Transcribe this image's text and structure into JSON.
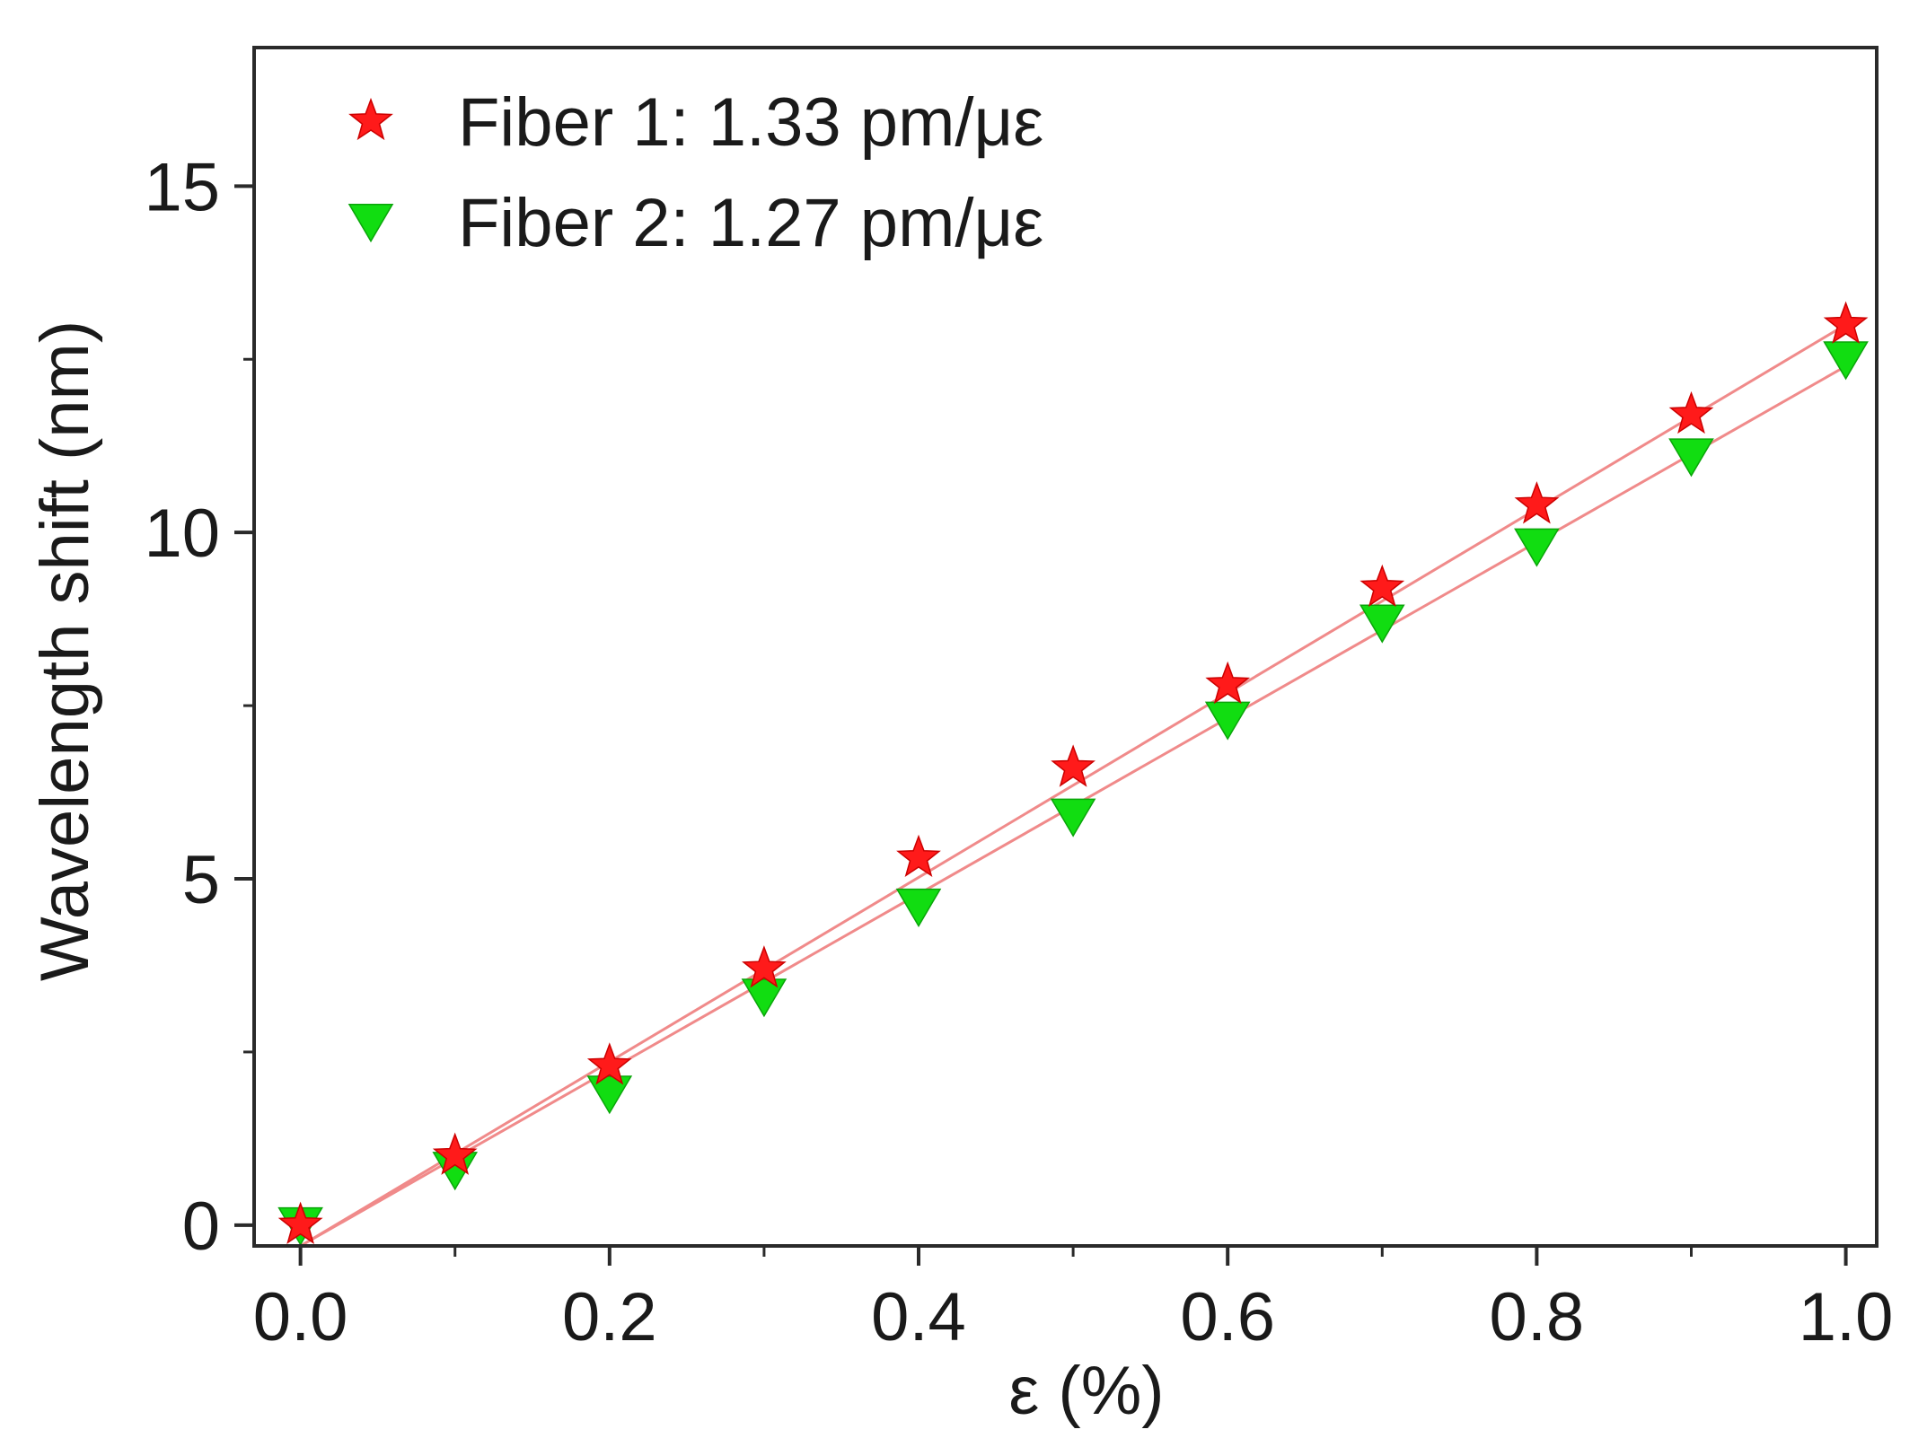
{
  "chart_data": {
    "type": "scatter",
    "xlabel": "ε (%)",
    "ylabel": "Wavelength shift (nm)",
    "xlim": [
      -0.03,
      1.02
    ],
    "ylim": [
      -0.3,
      17.0
    ],
    "xticks": [
      0.0,
      0.2,
      0.4,
      0.6,
      0.8,
      1.0
    ],
    "xtick_labels": [
      "0.0",
      "0.2",
      "0.4",
      "0.6",
      "0.8",
      "1.0"
    ],
    "xminor": [
      0.1,
      0.3,
      0.5,
      0.7,
      0.9
    ],
    "yticks": [
      0,
      5,
      10,
      15
    ],
    "ytick_labels": [
      "0",
      "5",
      "10",
      "15"
    ],
    "yminor": [
      2.5,
      7.5,
      12.5
    ],
    "grid": false,
    "legend_position": "top-left",
    "series": [
      {
        "name": "Fiber 1: 1.33 pm/με",
        "marker": "star",
        "color": "#ff1a1a",
        "fit_color": "#f08a8a",
        "x": [
          0.0,
          0.1,
          0.2,
          0.3,
          0.4,
          0.5,
          0.6,
          0.7,
          0.8,
          0.9,
          1.0
        ],
        "y": [
          0.0,
          1.0,
          2.3,
          3.7,
          5.3,
          6.6,
          7.8,
          9.2,
          10.4,
          11.7,
          13.0
        ],
        "fit": [
          [
            0.0,
            -0.3
          ],
          [
            1.0,
            13.0
          ]
        ]
      },
      {
        "name": "Fiber 2: 1.27 pm/με",
        "marker": "triangle-down",
        "color": "#11dd11",
        "fit_color": "#f08a8a",
        "x": [
          0.0,
          0.1,
          0.2,
          0.3,
          0.4,
          0.5,
          0.6,
          0.7,
          0.8,
          0.9,
          1.0
        ],
        "y": [
          0.0,
          0.8,
          1.9,
          3.3,
          4.6,
          5.9,
          7.3,
          8.7,
          9.8,
          11.1,
          12.5
        ],
        "fit": [
          [
            0.0,
            -0.3
          ],
          [
            1.0,
            12.4
          ]
        ]
      }
    ]
  }
}
